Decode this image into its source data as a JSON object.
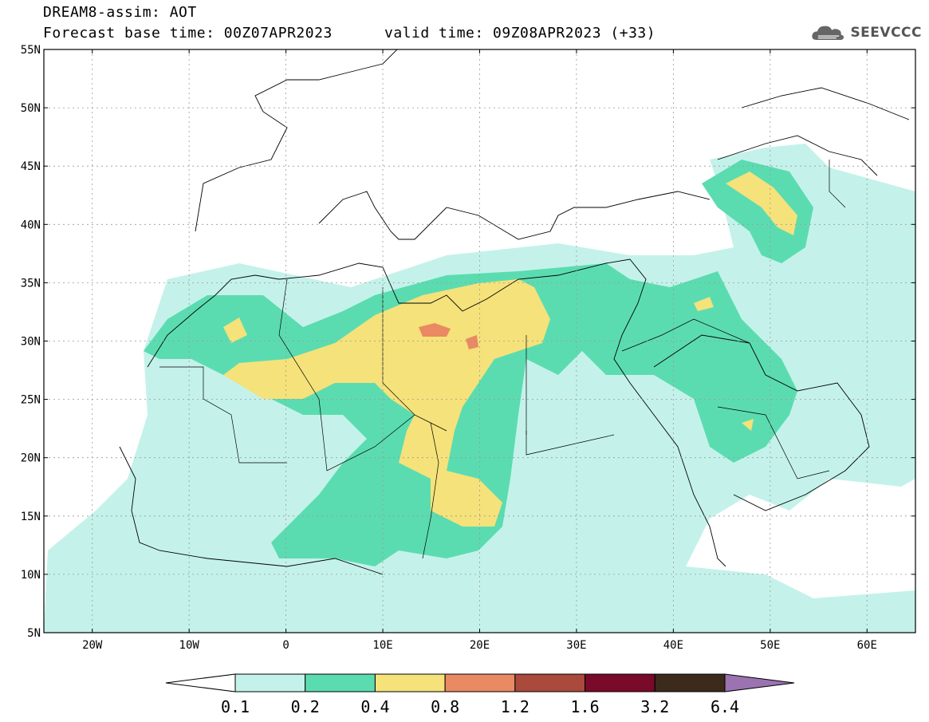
{
  "header": {
    "title": "DREAM8-assim: AOT",
    "base_time": "Forecast base time: 00Z07APR2023",
    "valid_time": "valid time: 09Z08APR2023 (+33)",
    "logo_text": "SEEVCCC",
    "logo_icon": "cloud-icon"
  },
  "map": {
    "lat_labels": [
      "55N",
      "50N",
      "45N",
      "40N",
      "35N",
      "30N",
      "25N",
      "20N",
      "15N",
      "10N",
      "5N"
    ],
    "lon_labels": [
      "20W",
      "10W",
      "0",
      "10E",
      "20E",
      "30E",
      "40E",
      "50E",
      "60E"
    ],
    "lat_range": [
      5,
      55
    ],
    "lon_range": [
      -25,
      65
    ],
    "grid": "dotted"
  },
  "legend": {
    "labels": [
      "0.1",
      "0.2",
      "0.4",
      "0.8",
      "1.2",
      "1.6",
      "3.2",
      "6.4"
    ],
    "colors": [
      "#ffffff",
      "#c4f2ea",
      "#5bdcb0",
      "#f5e27a",
      "#e98a63",
      "#a94a3c",
      "#7a0a2a",
      "#3c2a1a",
      "#9a73b0"
    ]
  }
}
